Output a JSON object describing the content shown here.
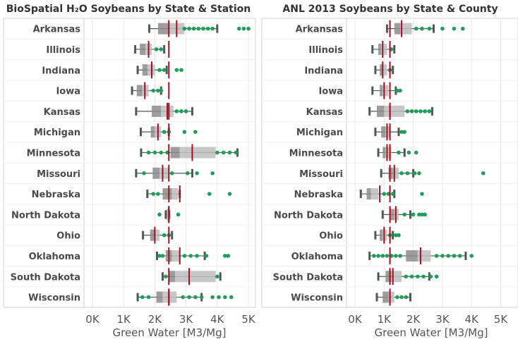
{
  "chart_data": [
    {
      "type": "boxplot",
      "title": "BioSpatial H₂O Soybeans by State & Station",
      "xlabel": "Green Water [M3/Mg]",
      "xlim": [
        -200,
        5600
      ],
      "xticks": [
        0,
        1000,
        2000,
        3000,
        4000,
        5000
      ],
      "xticklabels": [
        "0K",
        "1K",
        "2K",
        "3K",
        "4K",
        "5K"
      ],
      "grid": "vertical",
      "reference_value": 2450,
      "categories": [
        "Arkansas",
        "Illinois",
        "Indiana",
        "Iowa",
        "Kansas",
        "Michigan",
        "Minnesota",
        "Missouri",
        "Nebraska",
        "North Dakota",
        "Ohio",
        "Oklahoma",
        "South Dakota",
        "Wisconsin"
      ],
      "boxes": [
        {
          "min": 1820,
          "q1": 2100,
          "median": 2450,
          "q3": 2950,
          "max": 4000,
          "mean": 2700,
          "outliers": [
            2950,
            3100,
            3250,
            3400,
            3550,
            3700,
            3850,
            4700,
            4850,
            5000
          ]
        },
        {
          "min": 1370,
          "q1": 1520,
          "median": 1700,
          "q3": 1900,
          "max": 2300,
          "mean": 1800,
          "outliers": [
            2050,
            2200
          ]
        },
        {
          "min": 1450,
          "q1": 1600,
          "median": 1770,
          "q3": 2000,
          "max": 2380,
          "mean": 1900,
          "outliers": [
            2150,
            2300,
            2700,
            2850
          ]
        },
        {
          "min": 1270,
          "q1": 1420,
          "median": 1600,
          "q3": 1800,
          "max": 2200,
          "mean": 1680,
          "outliers": [
            1950,
            2100,
            2200
          ]
        },
        {
          "min": 1400,
          "q1": 1900,
          "median": 2200,
          "q3": 2600,
          "max": 3200,
          "mean": 2400,
          "outliers": [
            2700,
            2850,
            3000
          ]
        },
        {
          "min": 1550,
          "q1": 1870,
          "median": 2000,
          "q3": 2200,
          "max": 2450,
          "mean": 2100,
          "outliers": [
            2300,
            2450,
            2950,
            3300
          ]
        },
        {
          "min": 1560,
          "q1": 2500,
          "median": 2800,
          "q3": 3950,
          "max": 4650,
          "mean": 3200,
          "outliers": [
            1800,
            2000,
            2200,
            2400,
            4000,
            4200,
            4400,
            4600
          ]
        },
        {
          "min": 1400,
          "q1": 1930,
          "median": 2150,
          "q3": 2450,
          "max": 3200,
          "mean": 2250,
          "outliers": [
            1650,
            2550,
            3050,
            3350,
            3850
          ]
        },
        {
          "min": 1760,
          "q1": 2250,
          "median": 2550,
          "q3": 2750,
          "max": 2800,
          "mean": 2800,
          "outliers": [
            1950,
            2100,
            3750,
            4400
          ]
        },
        {
          "min": 2350,
          "q1": 2380,
          "median": 2400,
          "q3": 2430,
          "max": 2460,
          "mean": 2450,
          "outliers": [
            2150,
            2750
          ]
        },
        {
          "min": 1620,
          "q1": 1850,
          "median": 1980,
          "q3": 2150,
          "max": 2550,
          "mean": 2000,
          "outliers": [
            2300,
            2450
          ]
        },
        {
          "min": 2070,
          "q1": 2350,
          "median": 2550,
          "q3": 2800,
          "max": 3600,
          "mean": 2800,
          "outliers": [
            2150,
            2250,
            2950,
            3150,
            3350,
            3650,
            4250,
            4350
          ]
        },
        {
          "min": 2250,
          "q1": 2450,
          "median": 2650,
          "q3": 3950,
          "max": 4100,
          "mean": 3100,
          "outliers": [
            2350,
            4000
          ]
        },
        {
          "min": 1450,
          "q1": 2050,
          "median": 2250,
          "q3": 2700,
          "max": 3500,
          "mean": 2450,
          "outliers": [
            1600,
            1800,
            2900,
            3100,
            3300,
            3500,
            3850,
            4050,
            4250,
            4450
          ]
        }
      ]
    },
    {
      "type": "boxplot",
      "title": "ANL 2013 Soybeans by State & County",
      "xlabel": "Green Water [M3/Mg]",
      "xlim": [
        -200,
        5600
      ],
      "xticks": [
        0,
        1000,
        2000,
        3000,
        4000,
        5000
      ],
      "xticklabels": [
        "0K",
        "1K",
        "2K",
        "3K",
        "4K",
        "5K"
      ],
      "grid": "vertical",
      "reference_value": 1200,
      "categories": [
        "Arkansas",
        "Illinois",
        "Indiana",
        "Iowa",
        "Kansas",
        "Michigan",
        "Minnesota",
        "Missouri",
        "Nebraska",
        "North Dakota",
        "Ohio",
        "Oklahoma",
        "South Dakota",
        "Wisconsin"
      ],
      "boxes": [
        {
          "min": 1100,
          "q1": 1350,
          "median": 1550,
          "q3": 1950,
          "max": 2700,
          "mean": 1600,
          "outliers": [
            2100,
            2300,
            2550,
            3400,
            3700,
            3000
          ]
        },
        {
          "min": 600,
          "q1": 800,
          "median": 900,
          "q3": 1100,
          "max": 1350,
          "mean": 950,
          "outliers": [
            1250
          ]
        },
        {
          "min": 700,
          "q1": 850,
          "median": 920,
          "q3": 1100,
          "max": 1300,
          "mean": 950,
          "outliers": [
            1200
          ]
        },
        {
          "min": 600,
          "q1": 850,
          "median": 950,
          "q3": 1150,
          "max": 1400,
          "mean": 1000,
          "outliers": [
            1450,
            1550
          ]
        },
        {
          "min": 500,
          "q1": 750,
          "median": 1000,
          "q3": 1700,
          "max": 2650,
          "mean": 1200,
          "outliers": [
            1800,
            1950,
            2100,
            2250,
            2400,
            2550
          ]
        },
        {
          "min": 700,
          "q1": 900,
          "median": 1050,
          "q3": 1200,
          "max": 1500,
          "mean": 1100,
          "outliers": [
            1600,
            1700
          ]
        },
        {
          "min": 800,
          "q1": 950,
          "median": 1050,
          "q3": 1250,
          "max": 1700,
          "mean": 1100,
          "outliers": [
            1500,
            1850,
            2100
          ]
        },
        {
          "min": 900,
          "q1": 1150,
          "median": 1300,
          "q3": 1500,
          "max": 2000,
          "mean": 1350,
          "outliers": [
            1600,
            1800,
            2050,
            2200,
            4400
          ]
        },
        {
          "min": 200,
          "q1": 400,
          "median": 550,
          "q3": 800,
          "max": 1350,
          "mean": 850,
          "outliers": [
            1000,
            1150,
            1300,
            2300
          ]
        },
        {
          "min": 950,
          "q1": 1200,
          "median": 1350,
          "q3": 1500,
          "max": 1900,
          "mean": 1400,
          "outliers": [
            1700,
            2000,
            2200,
            2300,
            2400
          ]
        },
        {
          "min": 700,
          "q1": 850,
          "median": 950,
          "q3": 1100,
          "max": 1300,
          "mean": 1000,
          "outliers": [
            1200,
            1400,
            1500
          ]
        },
        {
          "min": 500,
          "q1": 1750,
          "median": 2150,
          "q3": 2600,
          "max": 3800,
          "mean": 2250,
          "outliers": [
            650,
            800,
            950,
            1100,
            1250,
            1400,
            1550,
            2800,
            3000,
            3200,
            3400,
            3600,
            4000
          ]
        },
        {
          "min": 800,
          "q1": 1050,
          "median": 1250,
          "q3": 1600,
          "max": 2550,
          "mean": 1300,
          "outliers": [
            1750,
            1950,
            2150,
            2350,
            2600,
            2800
          ]
        },
        {
          "min": 750,
          "q1": 950,
          "median": 1150,
          "q3": 1350,
          "max": 1900,
          "mean": 1200,
          "outliers": [
            1450,
            1600,
            1750
          ]
        }
      ]
    }
  ]
}
